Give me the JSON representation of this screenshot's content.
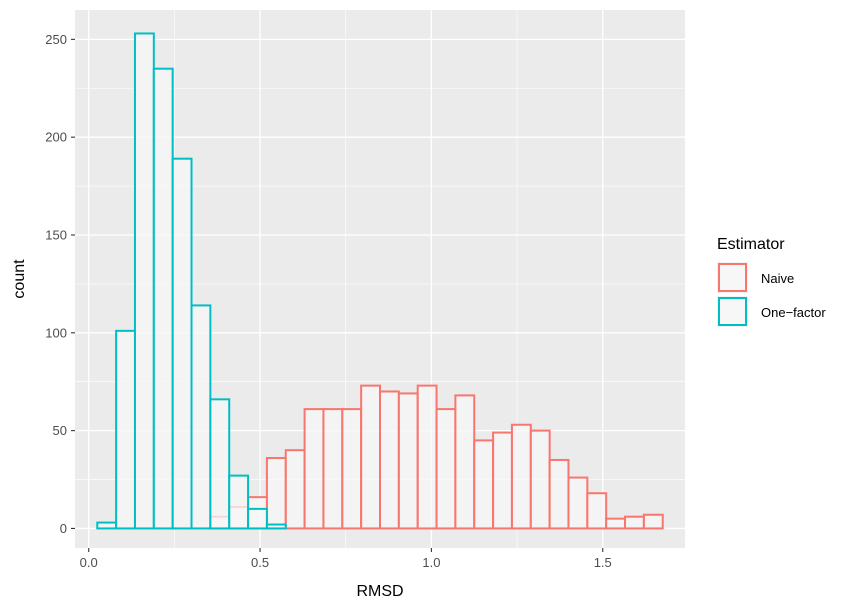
{
  "chart_data": {
    "type": "histogram",
    "title": "",
    "xlabel": "RMSD",
    "ylabel": "count",
    "xlim": [
      -0.04,
      1.74
    ],
    "ylim": [
      -10,
      265
    ],
    "x_ticks": [
      0.0,
      0.5,
      1.0,
      1.5
    ],
    "x_tick_labels": [
      "0.0",
      "0.5",
      "1.0",
      "1.5"
    ],
    "y_ticks": [
      0,
      50,
      100,
      150,
      200,
      250
    ],
    "y_tick_labels": [
      "0",
      "50",
      "100",
      "150",
      "200",
      "250"
    ],
    "bin_width": 0.055,
    "grid": true,
    "legend": {
      "title": "Estimator",
      "placement": "right"
    },
    "fill_color": "#f7f7f7",
    "series": [
      {
        "name": "Naive",
        "color": "#F8766D",
        "bins": [
          {
            "x0": 0.355,
            "x1": 0.41,
            "count": 6
          },
          {
            "x0": 0.41,
            "x1": 0.465,
            "count": 11
          },
          {
            "x0": 0.465,
            "x1": 0.52,
            "count": 16
          },
          {
            "x0": 0.52,
            "x1": 0.575,
            "count": 36
          },
          {
            "x0": 0.575,
            "x1": 0.63,
            "count": 40
          },
          {
            "x0": 0.63,
            "x1": 0.685,
            "count": 61
          },
          {
            "x0": 0.685,
            "x1": 0.74,
            "count": 61
          },
          {
            "x0": 0.74,
            "x1": 0.795,
            "count": 61
          },
          {
            "x0": 0.795,
            "x1": 0.85,
            "count": 73
          },
          {
            "x0": 0.85,
            "x1": 0.905,
            "count": 70
          },
          {
            "x0": 0.905,
            "x1": 0.96,
            "count": 69
          },
          {
            "x0": 0.96,
            "x1": 1.015,
            "count": 73
          },
          {
            "x0": 1.015,
            "x1": 1.07,
            "count": 61
          },
          {
            "x0": 1.07,
            "x1": 1.125,
            "count": 68
          },
          {
            "x0": 1.125,
            "x1": 1.18,
            "count": 45
          },
          {
            "x0": 1.18,
            "x1": 1.235,
            "count": 49
          },
          {
            "x0": 1.235,
            "x1": 1.29,
            "count": 53
          },
          {
            "x0": 1.29,
            "x1": 1.345,
            "count": 50
          },
          {
            "x0": 1.345,
            "x1": 1.4,
            "count": 35
          },
          {
            "x0": 1.4,
            "x1": 1.455,
            "count": 26
          },
          {
            "x0": 1.455,
            "x1": 1.51,
            "count": 18
          },
          {
            "x0": 1.51,
            "x1": 1.565,
            "count": 5
          },
          {
            "x0": 1.565,
            "x1": 1.62,
            "count": 6
          },
          {
            "x0": 1.62,
            "x1": 1.675,
            "count": 7
          }
        ]
      },
      {
        "name": "One−factor",
        "color": "#00BFC4",
        "bins": [
          {
            "x0": 0.025,
            "x1": 0.08,
            "count": 3
          },
          {
            "x0": 0.08,
            "x1": 0.135,
            "count": 101
          },
          {
            "x0": 0.135,
            "x1": 0.19,
            "count": 253
          },
          {
            "x0": 0.19,
            "x1": 0.245,
            "count": 235
          },
          {
            "x0": 0.245,
            "x1": 0.3,
            "count": 189
          },
          {
            "x0": 0.3,
            "x1": 0.355,
            "count": 114
          },
          {
            "x0": 0.355,
            "x1": 0.41,
            "count": 66
          },
          {
            "x0": 0.41,
            "x1": 0.465,
            "count": 27
          },
          {
            "x0": 0.465,
            "x1": 0.52,
            "count": 10
          },
          {
            "x0": 0.52,
            "x1": 0.575,
            "count": 2
          }
        ]
      }
    ]
  }
}
